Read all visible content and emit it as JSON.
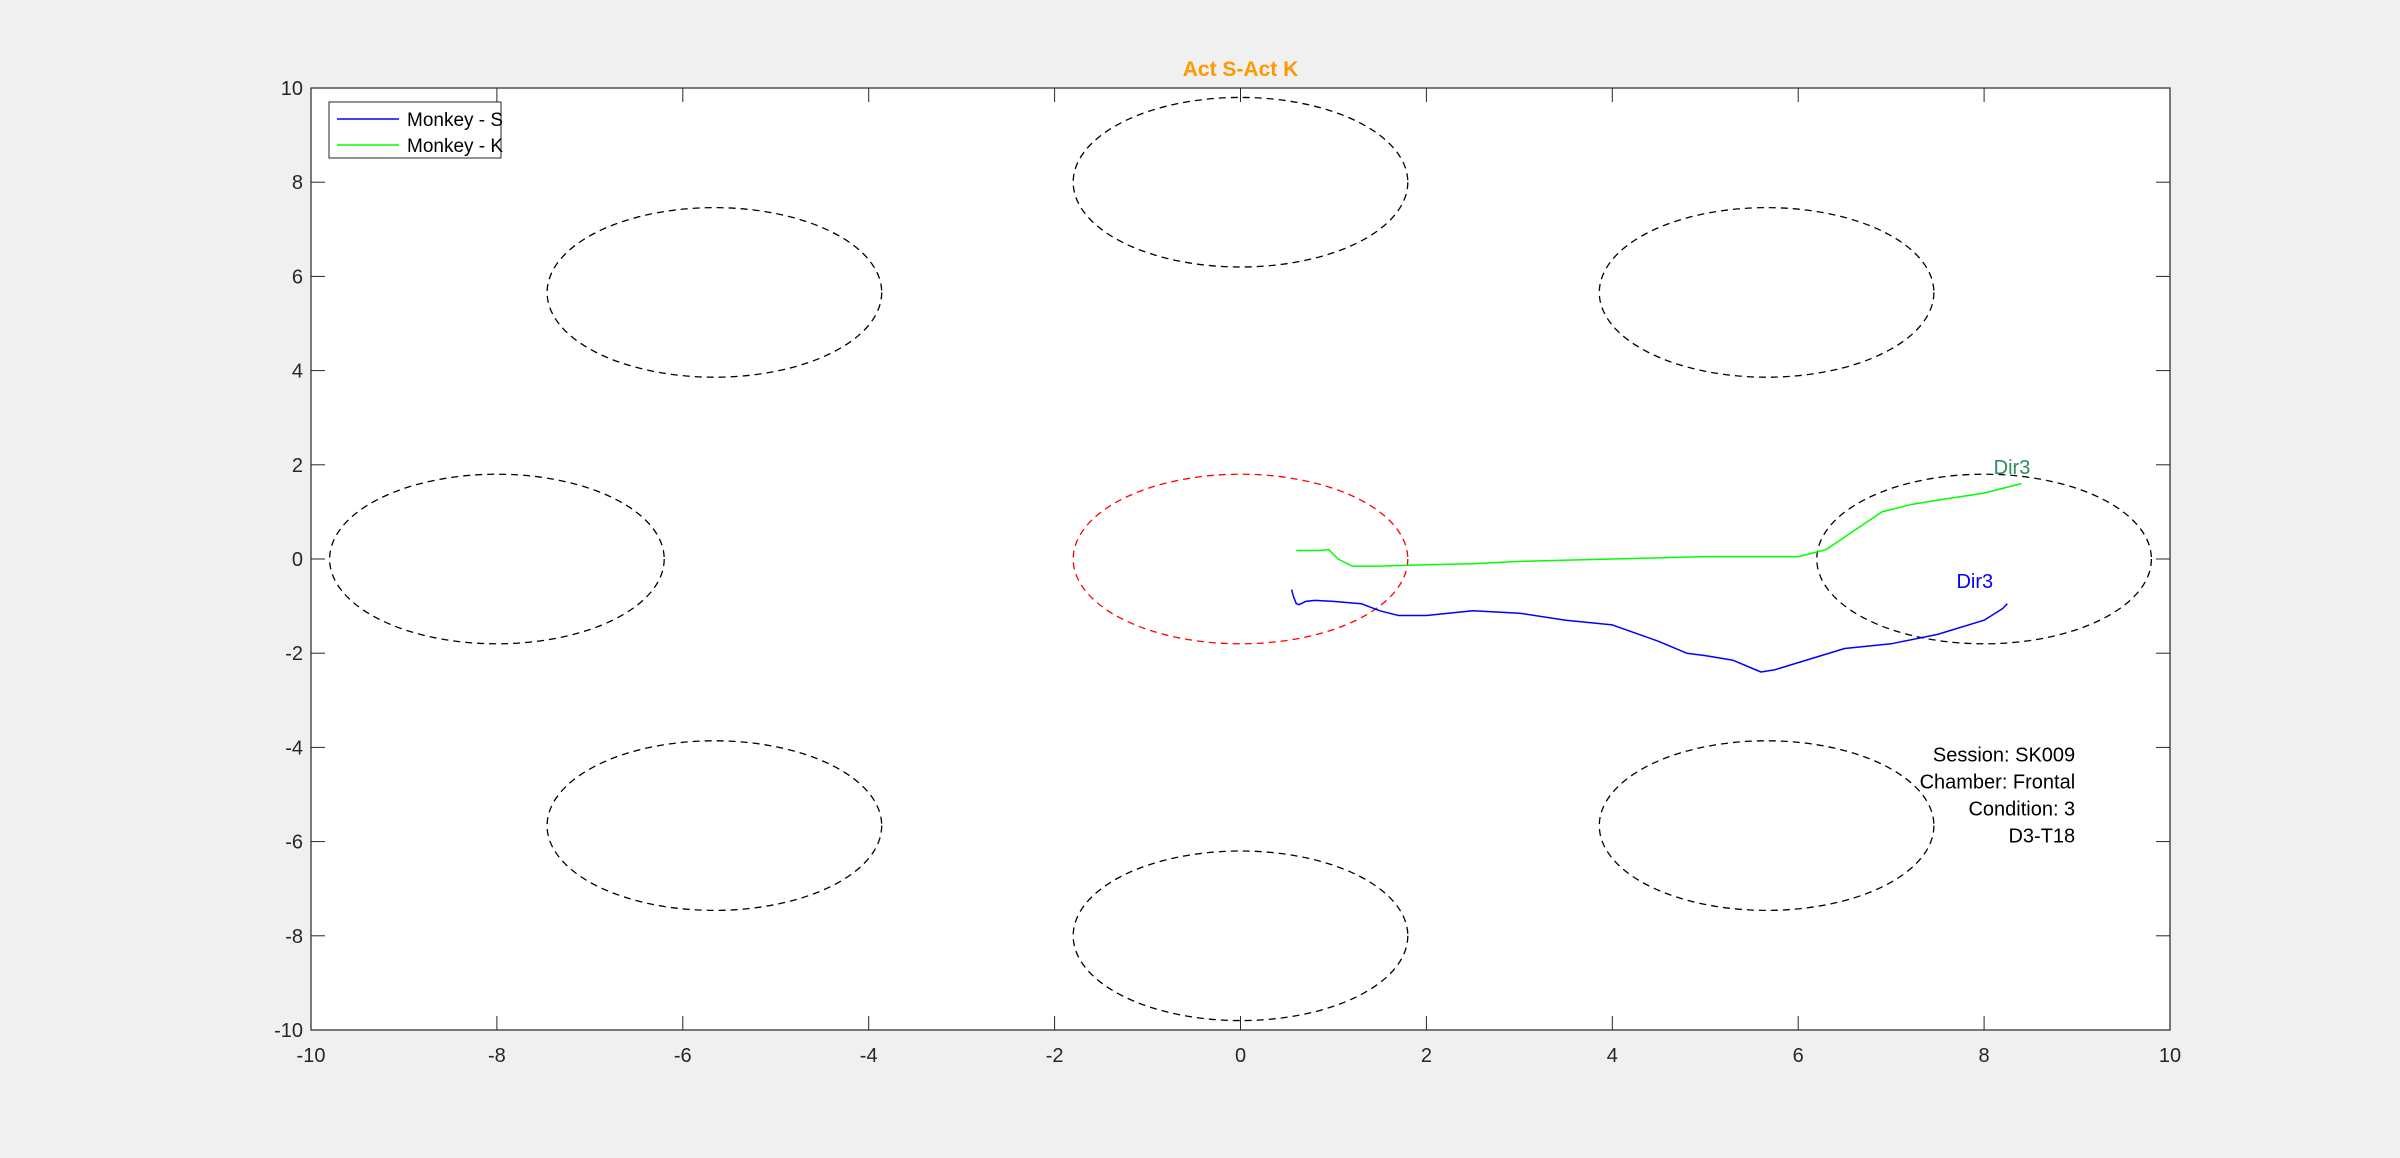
{
  "chart_data": {
    "type": "line",
    "title": "Act S-Act K",
    "title_color": "#ff9900",
    "xlabel": "",
    "ylabel": "",
    "xlim": [
      -10,
      10
    ],
    "ylim": [
      -10,
      10
    ],
    "x_ticks": [
      -10,
      -8,
      -6,
      -4,
      -2,
      0,
      2,
      4,
      6,
      8,
      10
    ],
    "y_ticks": [
      -10,
      -8,
      -6,
      -4,
      -2,
      0,
      2,
      4,
      6,
      8,
      10
    ],
    "grid": false,
    "legend": {
      "placement": "top-left",
      "entries": [
        {
          "label": "Monkey - S",
          "color": "#0000ff"
        },
        {
          "label": "Monkey - K",
          "color": "#00ff00"
        }
      ]
    },
    "targets": [
      {
        "cx": 0,
        "cy": 0,
        "rx": 1.8,
        "ry": 1.8,
        "color": "#ff0000"
      },
      {
        "cx": 0,
        "cy": 8,
        "rx": 1.8,
        "ry": 1.8,
        "color": "#000000"
      },
      {
        "cx": 5.66,
        "cy": 5.66,
        "rx": 1.8,
        "ry": 1.8,
        "color": "#000000"
      },
      {
        "cx": 8,
        "cy": 0,
        "rx": 1.8,
        "ry": 1.8,
        "color": "#000000"
      },
      {
        "cx": 5.66,
        "cy": -5.66,
        "rx": 1.8,
        "ry": 1.8,
        "color": "#000000"
      },
      {
        "cx": 0,
        "cy": -8,
        "rx": 1.8,
        "ry": 1.8,
        "color": "#000000"
      },
      {
        "cx": -5.66,
        "cy": -5.66,
        "rx": 1.8,
        "ry": 1.8,
        "color": "#000000"
      },
      {
        "cx": -8,
        "cy": 0,
        "rx": 1.8,
        "ry": 1.8,
        "color": "#000000"
      },
      {
        "cx": -5.66,
        "cy": 5.66,
        "rx": 1.8,
        "ry": 1.8,
        "color": "#000000"
      }
    ],
    "series": [
      {
        "name": "Monkey - S",
        "color": "#0000ff",
        "x": [
          0.55,
          0.57,
          0.6,
          0.63,
          0.7,
          0.8,
          1.0,
          1.3,
          1.5,
          1.7,
          2.0,
          2.5,
          3.0,
          3.5,
          4.0,
          4.5,
          4.8,
          5.0,
          5.3,
          5.6,
          5.75,
          6.0,
          6.5,
          7.0,
          7.5,
          8.0,
          8.2,
          8.25
        ],
        "y": [
          -0.65,
          -0.8,
          -0.95,
          -0.97,
          -0.9,
          -0.88,
          -0.9,
          -0.95,
          -1.1,
          -1.2,
          -1.2,
          -1.1,
          -1.15,
          -1.3,
          -1.4,
          -1.75,
          -2.0,
          -2.05,
          -2.15,
          -2.4,
          -2.35,
          -2.2,
          -1.9,
          -1.8,
          -1.6,
          -1.3,
          -1.05,
          -0.95
        ]
      },
      {
        "name": "Monkey - K",
        "color": "#00ff00",
        "x": [
          0.6,
          0.85,
          0.95,
          1.05,
          1.2,
          1.5,
          2.0,
          2.5,
          3.0,
          4.0,
          5.0,
          5.5,
          6.0,
          6.3,
          6.6,
          6.9,
          7.2,
          7.5,
          8.0,
          8.3,
          8.4
        ],
        "y": [
          0.18,
          0.18,
          0.2,
          0.0,
          -0.15,
          -0.15,
          -0.12,
          -0.1,
          -0.05,
          0.0,
          0.05,
          0.05,
          0.05,
          0.2,
          0.6,
          1.0,
          1.15,
          1.25,
          1.4,
          1.55,
          1.6
        ]
      }
    ],
    "annotations": [
      {
        "text": "Dir3",
        "x": 8.3,
        "y": 1.8,
        "color": "#2e8b57"
      },
      {
        "text": "Dir3",
        "x": 7.9,
        "y": -0.62,
        "color": "#0000ff"
      }
    ],
    "info_box": {
      "placement": "bottom-right",
      "lines": [
        "Session: SK009",
        "Chamber: Frontal",
        "Condition: 3",
        "D3-T18"
      ]
    }
  }
}
